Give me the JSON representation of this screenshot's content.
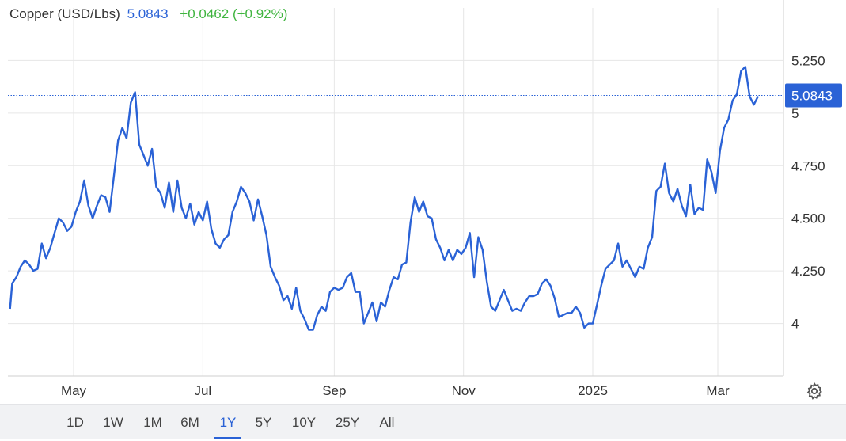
{
  "header": {
    "title": "Copper (USD/Lbs)",
    "price": "5.0843",
    "change": "+0.0462 (+0.92%)"
  },
  "price_tag": "5.0843",
  "periods": [
    "1D",
    "1W",
    "1M",
    "6M",
    "1Y",
    "5Y",
    "10Y",
    "25Y",
    "All"
  ],
  "active_period": "1Y",
  "icons": {
    "settings": "gear-icon"
  },
  "colors": {
    "line": "#2a62d6",
    "positive": "#3fb43f",
    "grid": "#e6e6e6"
  },
  "chart_data": {
    "type": "line",
    "title": "Copper (USD/Lbs)",
    "series": [
      {
        "name": "Copper (USD/Lbs)",
        "points": [
          [
            "2024-04-01",
            4.07
          ],
          [
            "2024-04-02",
            4.19
          ],
          [
            "2024-04-04",
            4.22
          ],
          [
            "2024-04-06",
            4.27
          ],
          [
            "2024-04-08",
            4.3
          ],
          [
            "2024-04-10",
            4.28
          ],
          [
            "2024-04-12",
            4.25
          ],
          [
            "2024-04-14",
            4.26
          ],
          [
            "2024-04-16",
            4.38
          ],
          [
            "2024-04-18",
            4.31
          ],
          [
            "2024-04-20",
            4.36
          ],
          [
            "2024-04-22",
            4.43
          ],
          [
            "2024-04-24",
            4.5
          ],
          [
            "2024-04-26",
            4.48
          ],
          [
            "2024-04-28",
            4.44
          ],
          [
            "2024-04-30",
            4.46
          ],
          [
            "2024-05-02",
            4.53
          ],
          [
            "2024-05-04",
            4.58
          ],
          [
            "2024-05-06",
            4.68
          ],
          [
            "2024-05-08",
            4.56
          ],
          [
            "2024-05-10",
            4.5
          ],
          [
            "2024-05-12",
            4.56
          ],
          [
            "2024-05-14",
            4.61
          ],
          [
            "2024-05-16",
            4.6
          ],
          [
            "2024-05-18",
            4.53
          ],
          [
            "2024-05-20",
            4.7
          ],
          [
            "2024-05-22",
            4.87
          ],
          [
            "2024-05-24",
            4.93
          ],
          [
            "2024-05-26",
            4.88
          ],
          [
            "2024-05-28",
            5.05
          ],
          [
            "2024-05-30",
            5.1
          ],
          [
            "2024-06-01",
            4.85
          ],
          [
            "2024-06-03",
            4.8
          ],
          [
            "2024-06-05",
            4.75
          ],
          [
            "2024-06-07",
            4.83
          ],
          [
            "2024-06-09",
            4.65
          ],
          [
            "2024-06-11",
            4.62
          ],
          [
            "2024-06-13",
            4.55
          ],
          [
            "2024-06-15",
            4.67
          ],
          [
            "2024-06-17",
            4.53
          ],
          [
            "2024-06-19",
            4.68
          ],
          [
            "2024-06-21",
            4.55
          ],
          [
            "2024-06-23",
            4.5
          ],
          [
            "2024-06-25",
            4.57
          ],
          [
            "2024-06-27",
            4.47
          ],
          [
            "2024-06-29",
            4.53
          ],
          [
            "2024-07-01",
            4.49
          ],
          [
            "2024-07-03",
            4.58
          ],
          [
            "2024-07-05",
            4.45
          ],
          [
            "2024-07-07",
            4.38
          ],
          [
            "2024-07-09",
            4.36
          ],
          [
            "2024-07-11",
            4.4
          ],
          [
            "2024-07-13",
            4.42
          ],
          [
            "2024-07-15",
            4.53
          ],
          [
            "2024-07-17",
            4.58
          ],
          [
            "2024-07-19",
            4.65
          ],
          [
            "2024-07-21",
            4.62
          ],
          [
            "2024-07-23",
            4.58
          ],
          [
            "2024-07-25",
            4.49
          ],
          [
            "2024-07-27",
            4.59
          ],
          [
            "2024-07-29",
            4.51
          ],
          [
            "2024-07-31",
            4.42
          ],
          [
            "2024-08-02",
            4.27
          ],
          [
            "2024-08-04",
            4.22
          ],
          [
            "2024-08-06",
            4.18
          ],
          [
            "2024-08-08",
            4.11
          ],
          [
            "2024-08-10",
            4.13
          ],
          [
            "2024-08-12",
            4.07
          ],
          [
            "2024-08-14",
            4.17
          ],
          [
            "2024-08-16",
            4.06
          ],
          [
            "2024-08-18",
            4.02
          ],
          [
            "2024-08-20",
            3.97
          ],
          [
            "2024-08-22",
            3.97
          ],
          [
            "2024-08-24",
            4.04
          ],
          [
            "2024-08-26",
            4.08
          ],
          [
            "2024-08-28",
            4.06
          ],
          [
            "2024-08-30",
            4.15
          ],
          [
            "2024-09-01",
            4.17
          ],
          [
            "2024-09-03",
            4.16
          ],
          [
            "2024-09-05",
            4.17
          ],
          [
            "2024-09-07",
            4.22
          ],
          [
            "2024-09-09",
            4.24
          ],
          [
            "2024-09-11",
            4.15
          ],
          [
            "2024-09-13",
            4.15
          ],
          [
            "2024-09-15",
            4.0
          ],
          [
            "2024-09-17",
            4.05
          ],
          [
            "2024-09-19",
            4.1
          ],
          [
            "2024-09-21",
            4.01
          ],
          [
            "2024-09-23",
            4.1
          ],
          [
            "2024-09-25",
            4.08
          ],
          [
            "2024-09-27",
            4.16
          ],
          [
            "2024-09-29",
            4.22
          ],
          [
            "2024-10-01",
            4.21
          ],
          [
            "2024-10-03",
            4.28
          ],
          [
            "2024-10-05",
            4.29
          ],
          [
            "2024-10-07",
            4.48
          ],
          [
            "2024-10-09",
            4.6
          ],
          [
            "2024-10-11",
            4.53
          ],
          [
            "2024-10-13",
            4.58
          ],
          [
            "2024-10-15",
            4.51
          ],
          [
            "2024-10-17",
            4.5
          ],
          [
            "2024-10-19",
            4.4
          ],
          [
            "2024-10-21",
            4.36
          ],
          [
            "2024-10-23",
            4.3
          ],
          [
            "2024-10-25",
            4.35
          ],
          [
            "2024-10-27",
            4.3
          ],
          [
            "2024-10-29",
            4.35
          ],
          [
            "2024-10-31",
            4.33
          ],
          [
            "2024-11-02",
            4.36
          ],
          [
            "2024-11-04",
            4.43
          ],
          [
            "2024-11-06",
            4.22
          ],
          [
            "2024-11-08",
            4.41
          ],
          [
            "2024-11-10",
            4.35
          ],
          [
            "2024-11-12",
            4.2
          ],
          [
            "2024-11-14",
            4.08
          ],
          [
            "2024-11-16",
            4.06
          ],
          [
            "2024-11-18",
            4.11
          ],
          [
            "2024-11-20",
            4.16
          ],
          [
            "2024-11-22",
            4.11
          ],
          [
            "2024-11-24",
            4.06
          ],
          [
            "2024-11-26",
            4.07
          ],
          [
            "2024-11-28",
            4.06
          ],
          [
            "2024-11-30",
            4.1
          ],
          [
            "2024-12-02",
            4.13
          ],
          [
            "2024-12-04",
            4.13
          ],
          [
            "2024-12-06",
            4.14
          ],
          [
            "2024-12-08",
            4.19
          ],
          [
            "2024-12-10",
            4.21
          ],
          [
            "2024-12-12",
            4.18
          ],
          [
            "2024-12-14",
            4.12
          ],
          [
            "2024-12-16",
            4.03
          ],
          [
            "2024-12-18",
            4.04
          ],
          [
            "2024-12-20",
            4.05
          ],
          [
            "2024-12-22",
            4.05
          ],
          [
            "2024-12-24",
            4.08
          ],
          [
            "2024-12-26",
            4.05
          ],
          [
            "2024-12-28",
            3.98
          ],
          [
            "2024-12-30",
            4.0
          ],
          [
            "2025-01-01",
            4.0
          ],
          [
            "2025-01-03",
            4.09
          ],
          [
            "2025-01-05",
            4.18
          ],
          [
            "2025-01-07",
            4.26
          ],
          [
            "2025-01-09",
            4.28
          ],
          [
            "2025-01-11",
            4.3
          ],
          [
            "2025-01-13",
            4.38
          ],
          [
            "2025-01-15",
            4.27
          ],
          [
            "2025-01-17",
            4.3
          ],
          [
            "2025-01-19",
            4.26
          ],
          [
            "2025-01-21",
            4.22
          ],
          [
            "2025-01-23",
            4.27
          ],
          [
            "2025-01-25",
            4.26
          ],
          [
            "2025-01-27",
            4.36
          ],
          [
            "2025-01-29",
            4.41
          ],
          [
            "2025-01-31",
            4.63
          ],
          [
            "2025-02-02",
            4.65
          ],
          [
            "2025-02-04",
            4.76
          ],
          [
            "2025-02-06",
            4.62
          ],
          [
            "2025-02-08",
            4.58
          ],
          [
            "2025-02-10",
            4.64
          ],
          [
            "2025-02-12",
            4.56
          ],
          [
            "2025-02-14",
            4.51
          ],
          [
            "2025-02-16",
            4.66
          ],
          [
            "2025-02-18",
            4.52
          ],
          [
            "2025-02-20",
            4.55
          ],
          [
            "2025-02-22",
            4.54
          ],
          [
            "2025-02-24",
            4.78
          ],
          [
            "2025-02-26",
            4.72
          ],
          [
            "2025-02-28",
            4.62
          ],
          [
            "2025-03-02",
            4.82
          ],
          [
            "2025-03-04",
            4.93
          ],
          [
            "2025-03-06",
            4.97
          ],
          [
            "2025-03-08",
            5.06
          ],
          [
            "2025-03-10",
            5.09
          ],
          [
            "2025-03-12",
            5.2
          ],
          [
            "2025-03-14",
            5.22
          ],
          [
            "2025-03-16",
            5.08
          ],
          [
            "2025-03-18",
            5.04
          ],
          [
            "2025-03-20",
            5.08
          ]
        ]
      }
    ],
    "x_tick_labels": [
      "May",
      "Jul",
      "Sep",
      "Nov",
      "2025",
      "Mar"
    ],
    "x_tick_dates": [
      "2024-05-01",
      "2024-07-01",
      "2024-09-01",
      "2024-11-01",
      "2025-01-01",
      "2025-03-01"
    ],
    "y_tick_labels": [
      "5.250",
      "5",
      "4.750",
      "4.500",
      "4.250",
      "4"
    ],
    "y_tick_values": [
      5.25,
      5.0,
      4.75,
      4.5,
      4.25,
      4.0
    ],
    "ylim": [
      3.75,
      5.5
    ],
    "xlim": [
      "2024-03-31",
      "2025-04-01"
    ],
    "last_value": 5.0843,
    "grid": true
  }
}
